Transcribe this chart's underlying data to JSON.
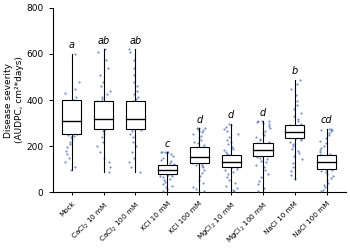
{
  "groups": [
    {
      "label": "Mock",
      "sig_letter": "a",
      "median": 310,
      "q1": 255,
      "q3": 400,
      "whisker_low": 95,
      "whisker_high": 600,
      "points": [
        95,
        110,
        130,
        150,
        165,
        180,
        195,
        210,
        220,
        230,
        240,
        245,
        250,
        255,
        258,
        262,
        265,
        270,
        275,
        280,
        285,
        290,
        295,
        300,
        305,
        310,
        315,
        320,
        325,
        330,
        340,
        350,
        360,
        370,
        380,
        390,
        400,
        415,
        430,
        450,
        480,
        600
      ]
    },
    {
      "label": "CaCl$_2$ 10 mM",
      "sig_letter": "ab",
      "median": 320,
      "q1": 275,
      "q3": 395,
      "whisker_low": 90,
      "whisker_high": 620,
      "points": [
        90,
        110,
        130,
        150,
        175,
        200,
        220,
        240,
        255,
        265,
        270,
        275,
        280,
        285,
        290,
        295,
        300,
        308,
        315,
        320,
        328,
        335,
        340,
        348,
        355,
        362,
        370,
        378,
        385,
        390,
        395,
        405,
        415,
        425,
        440,
        460,
        480,
        510,
        540,
        575,
        610,
        620
      ]
    },
    {
      "label": "CaCl$_2$ 100 mM",
      "sig_letter": "ab",
      "median": 320,
      "q1": 275,
      "q3": 395,
      "whisker_low": 90,
      "whisker_high": 620,
      "points": [
        90,
        110,
        130,
        150,
        175,
        200,
        220,
        240,
        255,
        265,
        270,
        275,
        280,
        285,
        290,
        295,
        300,
        308,
        315,
        320,
        328,
        335,
        340,
        348,
        355,
        362,
        370,
        378,
        385,
        390,
        395,
        405,
        415,
        425,
        440,
        460,
        480,
        510,
        540,
        575,
        610,
        620
      ]
    },
    {
      "label": "KCl 10 mM",
      "sig_letter": "c",
      "median": 95,
      "q1": 78,
      "q3": 118,
      "whisker_low": 8,
      "whisker_high": 175,
      "points": [
        8,
        15,
        22,
        30,
        38,
        45,
        52,
        60,
        65,
        70,
        72,
        75,
        78,
        80,
        83,
        86,
        88,
        90,
        92,
        95,
        97,
        100,
        103,
        106,
        108,
        110,
        112,
        115,
        118,
        122,
        128,
        135,
        142,
        150,
        158,
        165,
        170,
        175,
        175,
        175,
        175,
        175
      ]
    },
    {
      "label": "KCl 100 mM",
      "sig_letter": "d",
      "median": 155,
      "q1": 128,
      "q3": 198,
      "whisker_low": 5,
      "whisker_high": 278,
      "points": [
        5,
        15,
        25,
        40,
        55,
        70,
        85,
        98,
        108,
        115,
        120,
        124,
        128,
        133,
        138,
        142,
        146,
        150,
        155,
        160,
        165,
        170,
        175,
        180,
        185,
        190,
        195,
        198,
        205,
        212,
        220,
        228,
        235,
        245,
        255,
        262,
        268,
        272,
        275,
        278,
        278,
        278
      ]
    },
    {
      "label": "MgCl$_2$ 10 mM",
      "sig_letter": "d",
      "median": 130,
      "q1": 108,
      "q3": 162,
      "whisker_low": 5,
      "whisker_high": 298,
      "points": [
        5,
        12,
        20,
        30,
        42,
        55,
        68,
        80,
        90,
        98,
        103,
        108,
        112,
        116,
        120,
        124,
        128,
        130,
        133,
        136,
        140,
        144,
        148,
        152,
        156,
        160,
        162,
        168,
        175,
        182,
        190,
        198,
        208,
        218,
        228,
        240,
        255,
        265,
        275,
        285,
        292,
        298
      ]
    },
    {
      "label": "MgCl$_2$ 100 mM",
      "sig_letter": "d",
      "median": 185,
      "q1": 158,
      "q3": 215,
      "whisker_low": 8,
      "whisker_high": 308,
      "points": [
        8,
        20,
        35,
        50,
        65,
        80,
        95,
        108,
        120,
        130,
        138,
        145,
        150,
        155,
        158,
        162,
        166,
        170,
        175,
        180,
        185,
        190,
        195,
        200,
        205,
        210,
        215,
        220,
        225,
        232,
        240,
        248,
        258,
        268,
        278,
        288,
        295,
        300,
        305,
        308,
        308,
        308
      ]
    },
    {
      "label": "NaCl 10 mM",
      "sig_letter": "b",
      "median": 260,
      "q1": 235,
      "q3": 292,
      "whisker_low": 58,
      "whisker_high": 488,
      "points": [
        58,
        75,
        92,
        110,
        128,
        145,
        158,
        170,
        180,
        190,
        200,
        210,
        218,
        225,
        230,
        235,
        240,
        244,
        248,
        252,
        256,
        260,
        264,
        268,
        272,
        276,
        280,
        285,
        290,
        292,
        298,
        308,
        318,
        330,
        345,
        360,
        378,
        398,
        420,
        448,
        470,
        488
      ]
    },
    {
      "label": "NaCl 100 mM",
      "sig_letter": "cd",
      "median": 130,
      "q1": 100,
      "q3": 162,
      "whisker_low": 5,
      "whisker_high": 275,
      "points": [
        5,
        12,
        22,
        32,
        42,
        52,
        62,
        72,
        80,
        88,
        94,
        98,
        102,
        105,
        108,
        112,
        116,
        120,
        125,
        130,
        135,
        140,
        145,
        150,
        155,
        160,
        162,
        168,
        175,
        182,
        192,
        202,
        212,
        222,
        235,
        248,
        258,
        265,
        270,
        272,
        275,
        275
      ]
    }
  ],
  "ylabel": "Disease severity\n(AUDPC, cm²*days)",
  "ylim": [
    0,
    800
  ],
  "yticks": [
    0,
    200,
    400,
    600,
    800
  ],
  "box_color": "white",
  "box_edge_color": "black",
  "median_color": "black",
  "point_color": "#4472C4",
  "whisker_color": "black",
  "sig_letter_color": "black",
  "background_color": "white",
  "fig_width": 3.5,
  "fig_height": 2.5
}
